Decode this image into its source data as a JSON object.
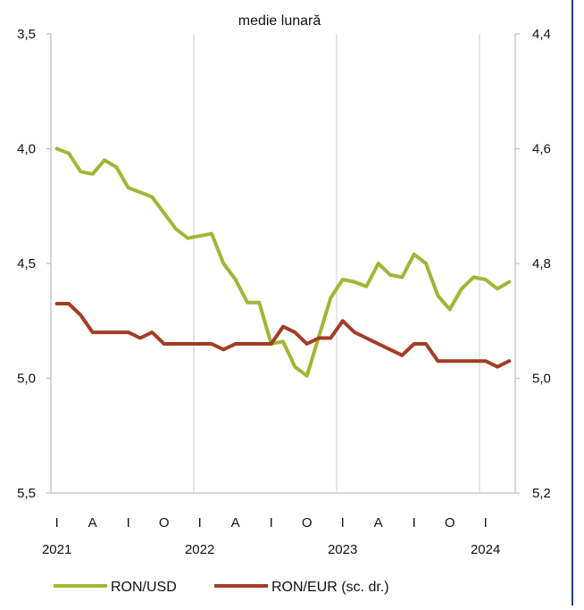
{
  "chart_data": {
    "type": "line",
    "title": "medie lunară",
    "x": [
      "2021-01",
      "2021-02",
      "2021-03",
      "2021-04",
      "2021-05",
      "2021-06",
      "2021-07",
      "2021-08",
      "2021-09",
      "2021-10",
      "2021-11",
      "2021-12",
      "2022-01",
      "2022-02",
      "2022-03",
      "2022-04",
      "2022-05",
      "2022-06",
      "2022-07",
      "2022-08",
      "2022-09",
      "2022-10",
      "2022-11",
      "2022-12",
      "2023-01",
      "2023-02",
      "2023-03",
      "2023-04",
      "2023-05",
      "2023-06",
      "2023-07",
      "2023-08",
      "2023-09",
      "2023-10",
      "2023-11",
      "2023-12",
      "2024-01",
      "2024-02",
      "2024-03"
    ],
    "x_tick_labels": [
      "I",
      "A",
      "I",
      "O",
      "I",
      "A",
      "I",
      "O",
      "I",
      "A",
      "I",
      "O",
      "I"
    ],
    "x_year_labels": [
      "2021",
      "2022",
      "2023",
      "2024"
    ],
    "y_left": {
      "ticks": [
        "3,5",
        "4,0",
        "4,5",
        "5,0",
        "5,5"
      ],
      "range": [
        3.5,
        5.5
      ],
      "inverted": true
    },
    "y_right": {
      "ticks": [
        "4,4",
        "4,6",
        "4,8",
        "5,0",
        "5,2"
      ],
      "range": [
        4.4,
        5.2
      ],
      "inverted": true
    },
    "series": [
      {
        "name": "RON/USD",
        "axis": "left",
        "color": "#a3b537",
        "values": [
          4.0,
          4.02,
          4.1,
          4.11,
          4.05,
          4.08,
          4.17,
          4.19,
          4.21,
          4.28,
          4.35,
          4.39,
          4.38,
          4.37,
          4.5,
          4.57,
          4.67,
          4.67,
          4.85,
          4.84,
          4.95,
          4.99,
          4.82,
          4.65,
          4.57,
          4.58,
          4.6,
          4.5,
          4.55,
          4.56,
          4.46,
          4.5,
          4.64,
          4.7,
          4.61,
          4.56,
          4.57,
          4.61,
          4.58
        ]
      },
      {
        "name": "RON/EUR (sc. dr.)",
        "axis": "right",
        "color": "#a33c24",
        "values": [
          4.87,
          4.87,
          4.89,
          4.92,
          4.92,
          4.92,
          4.92,
          4.93,
          4.92,
          4.94,
          4.94,
          4.94,
          4.94,
          4.94,
          4.95,
          4.94,
          4.94,
          4.94,
          4.94,
          4.91,
          4.92,
          4.94,
          4.93,
          4.93,
          4.9,
          4.92,
          4.93,
          4.94,
          4.95,
          4.96,
          4.94,
          4.94,
          4.97,
          4.97,
          4.97,
          4.97,
          4.97,
          4.98,
          4.97
        ]
      }
    ],
    "grid": "vertical",
    "legend_position": "bottom"
  }
}
